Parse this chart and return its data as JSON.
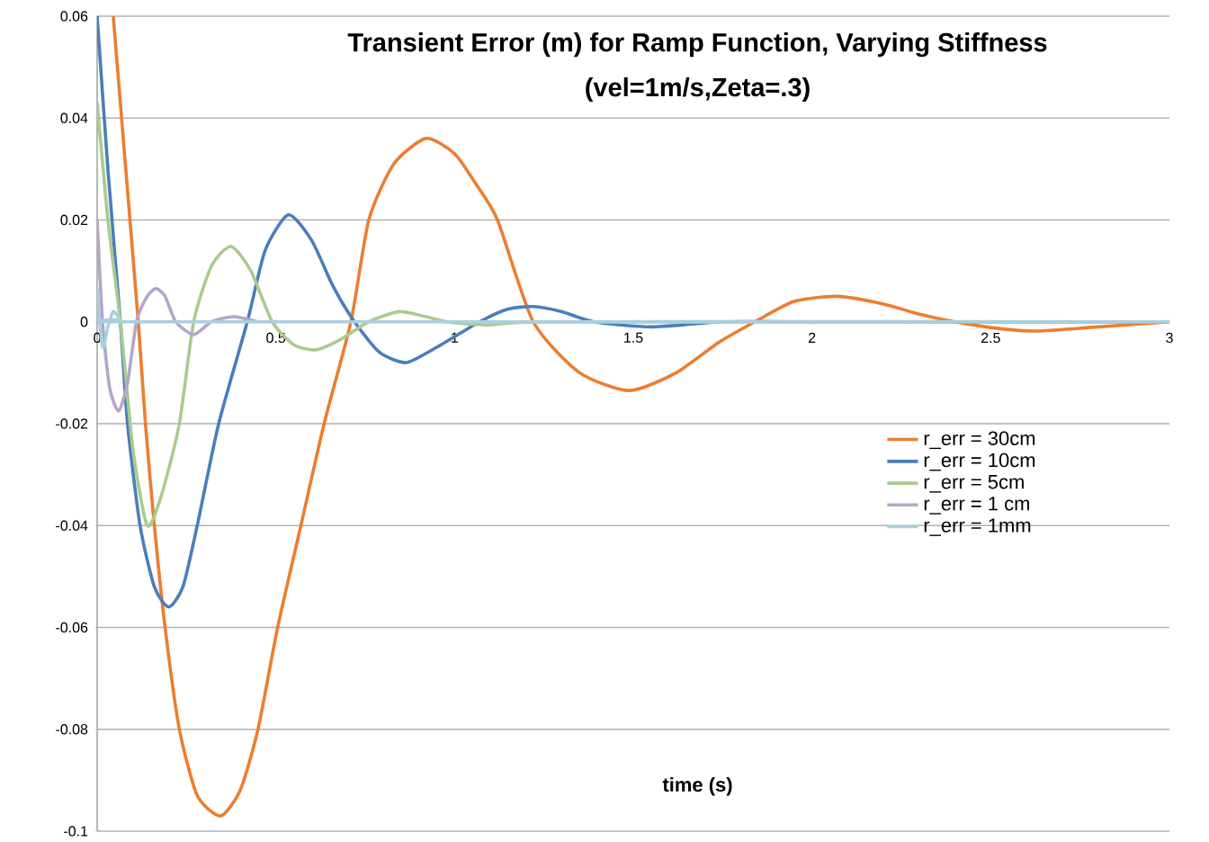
{
  "chart_data": {
    "type": "line",
    "title": "Transient Error (m) for Ramp Function, Varying Stiffness",
    "subtitle": "(vel=1m/s,Zeta=.3)",
    "xlabel": "time (s)",
    "xlim": [
      0,
      3
    ],
    "xticks": [
      0,
      0.5,
      1,
      1.5,
      2,
      2.5,
      3
    ],
    "ylim": [
      -0.1,
      0.06
    ],
    "yticks": [
      -0.1,
      -0.08,
      -0.06,
      -0.04,
      -0.02,
      0,
      0.02,
      0.04,
      0.06
    ],
    "grid": "y",
    "legend": "right",
    "line_style": "solid",
    "series": [
      {
        "name": "r_err = 30cm",
        "color": "#ed7d31",
        "x": [
          0.045,
          0.08,
          0.115,
          0.135,
          0.16,
          0.19,
          0.23,
          0.28,
          0.345,
          0.4,
          0.45,
          0.505,
          0.57,
          0.635,
          0.71,
          0.76,
          0.83,
          0.92,
          1.0,
          1.06,
          1.12,
          1.22,
          1.35,
          1.49,
          1.62,
          1.74,
          1.84,
          1.95,
          2.07,
          2.2,
          2.3,
          2.4,
          2.52,
          2.63,
          2.8,
          3.0
        ],
        "values": [
          0.06,
          0.03,
          0,
          -0.02,
          -0.04,
          -0.06,
          -0.08,
          -0.093,
          -0.097,
          -0.092,
          -0.08,
          -0.06,
          -0.04,
          -0.02,
          0,
          0.02,
          0.031,
          0.036,
          0.033,
          0.027,
          0.02,
          0,
          -0.01,
          -0.0135,
          -0.01,
          -0.004,
          0,
          0.004,
          0.005,
          0.0035,
          0.0015,
          0,
          -0.0013,
          -0.0018,
          -0.001,
          0
        ]
      },
      {
        "name": "r_err = 10cm",
        "color": "#4a7ebb",
        "x": [
          0,
          0.03,
          0.065,
          0.085,
          0.12,
          0.16,
          0.2,
          0.24,
          0.28,
          0.34,
          0.42,
          0.47,
          0.535,
          0.6,
          0.66,
          0.72,
          0.79,
          0.865,
          0.95,
          1.07,
          1.15,
          1.22,
          1.3,
          1.39,
          1.55,
          1.75,
          2.0,
          3.0
        ],
        "values": [
          0.06,
          0.03,
          0,
          -0.02,
          -0.04,
          -0.052,
          -0.056,
          -0.052,
          -0.04,
          -0.02,
          0,
          0.014,
          0.021,
          0.016,
          0.007,
          0,
          -0.006,
          -0.008,
          -0.005,
          0,
          0.0025,
          0.003,
          0.002,
          0,
          -0.001,
          0,
          0,
          0
        ]
      },
      {
        "name": "r_err = 5cm",
        "color": "#a9cb8c",
        "x": [
          0,
          0.03,
          0.065,
          0.1,
          0.14,
          0.18,
          0.23,
          0.27,
          0.32,
          0.375,
          0.43,
          0.49,
          0.55,
          0.61,
          0.68,
          0.76,
          0.845,
          0.92,
          0.98,
          1.1,
          1.3,
          3.0
        ],
        "values": [
          0.043,
          0.02,
          0,
          -0.025,
          -0.04,
          -0.034,
          -0.02,
          0,
          0.011,
          0.0148,
          0.01,
          0,
          -0.0045,
          -0.0055,
          -0.0035,
          0,
          0.002,
          0.001,
          0,
          -0.0006,
          0,
          0
        ]
      },
      {
        "name": "r_err = 1 cm",
        "color": "#b3a6c9",
        "x": [
          0,
          0.015,
          0.035,
          0.06,
          0.085,
          0.11,
          0.14,
          0.165,
          0.19,
          0.22,
          0.27,
          0.32,
          0.38,
          0.45
        ],
        "values": [
          0.02,
          0,
          -0.013,
          -0.0175,
          -0.012,
          0,
          0.005,
          0.0065,
          0.005,
          0,
          -0.0025,
          0,
          0.001,
          0
        ]
      },
      {
        "name": "r_err = 1mm",
        "color": "#a8cfe0",
        "x": [
          0,
          0.015,
          0.03,
          0.045,
          0.065,
          0.08,
          3.0
        ],
        "values": [
          0.0065,
          -0.005,
          -0.001,
          0.002,
          0.0005,
          0,
          0
        ]
      }
    ]
  }
}
